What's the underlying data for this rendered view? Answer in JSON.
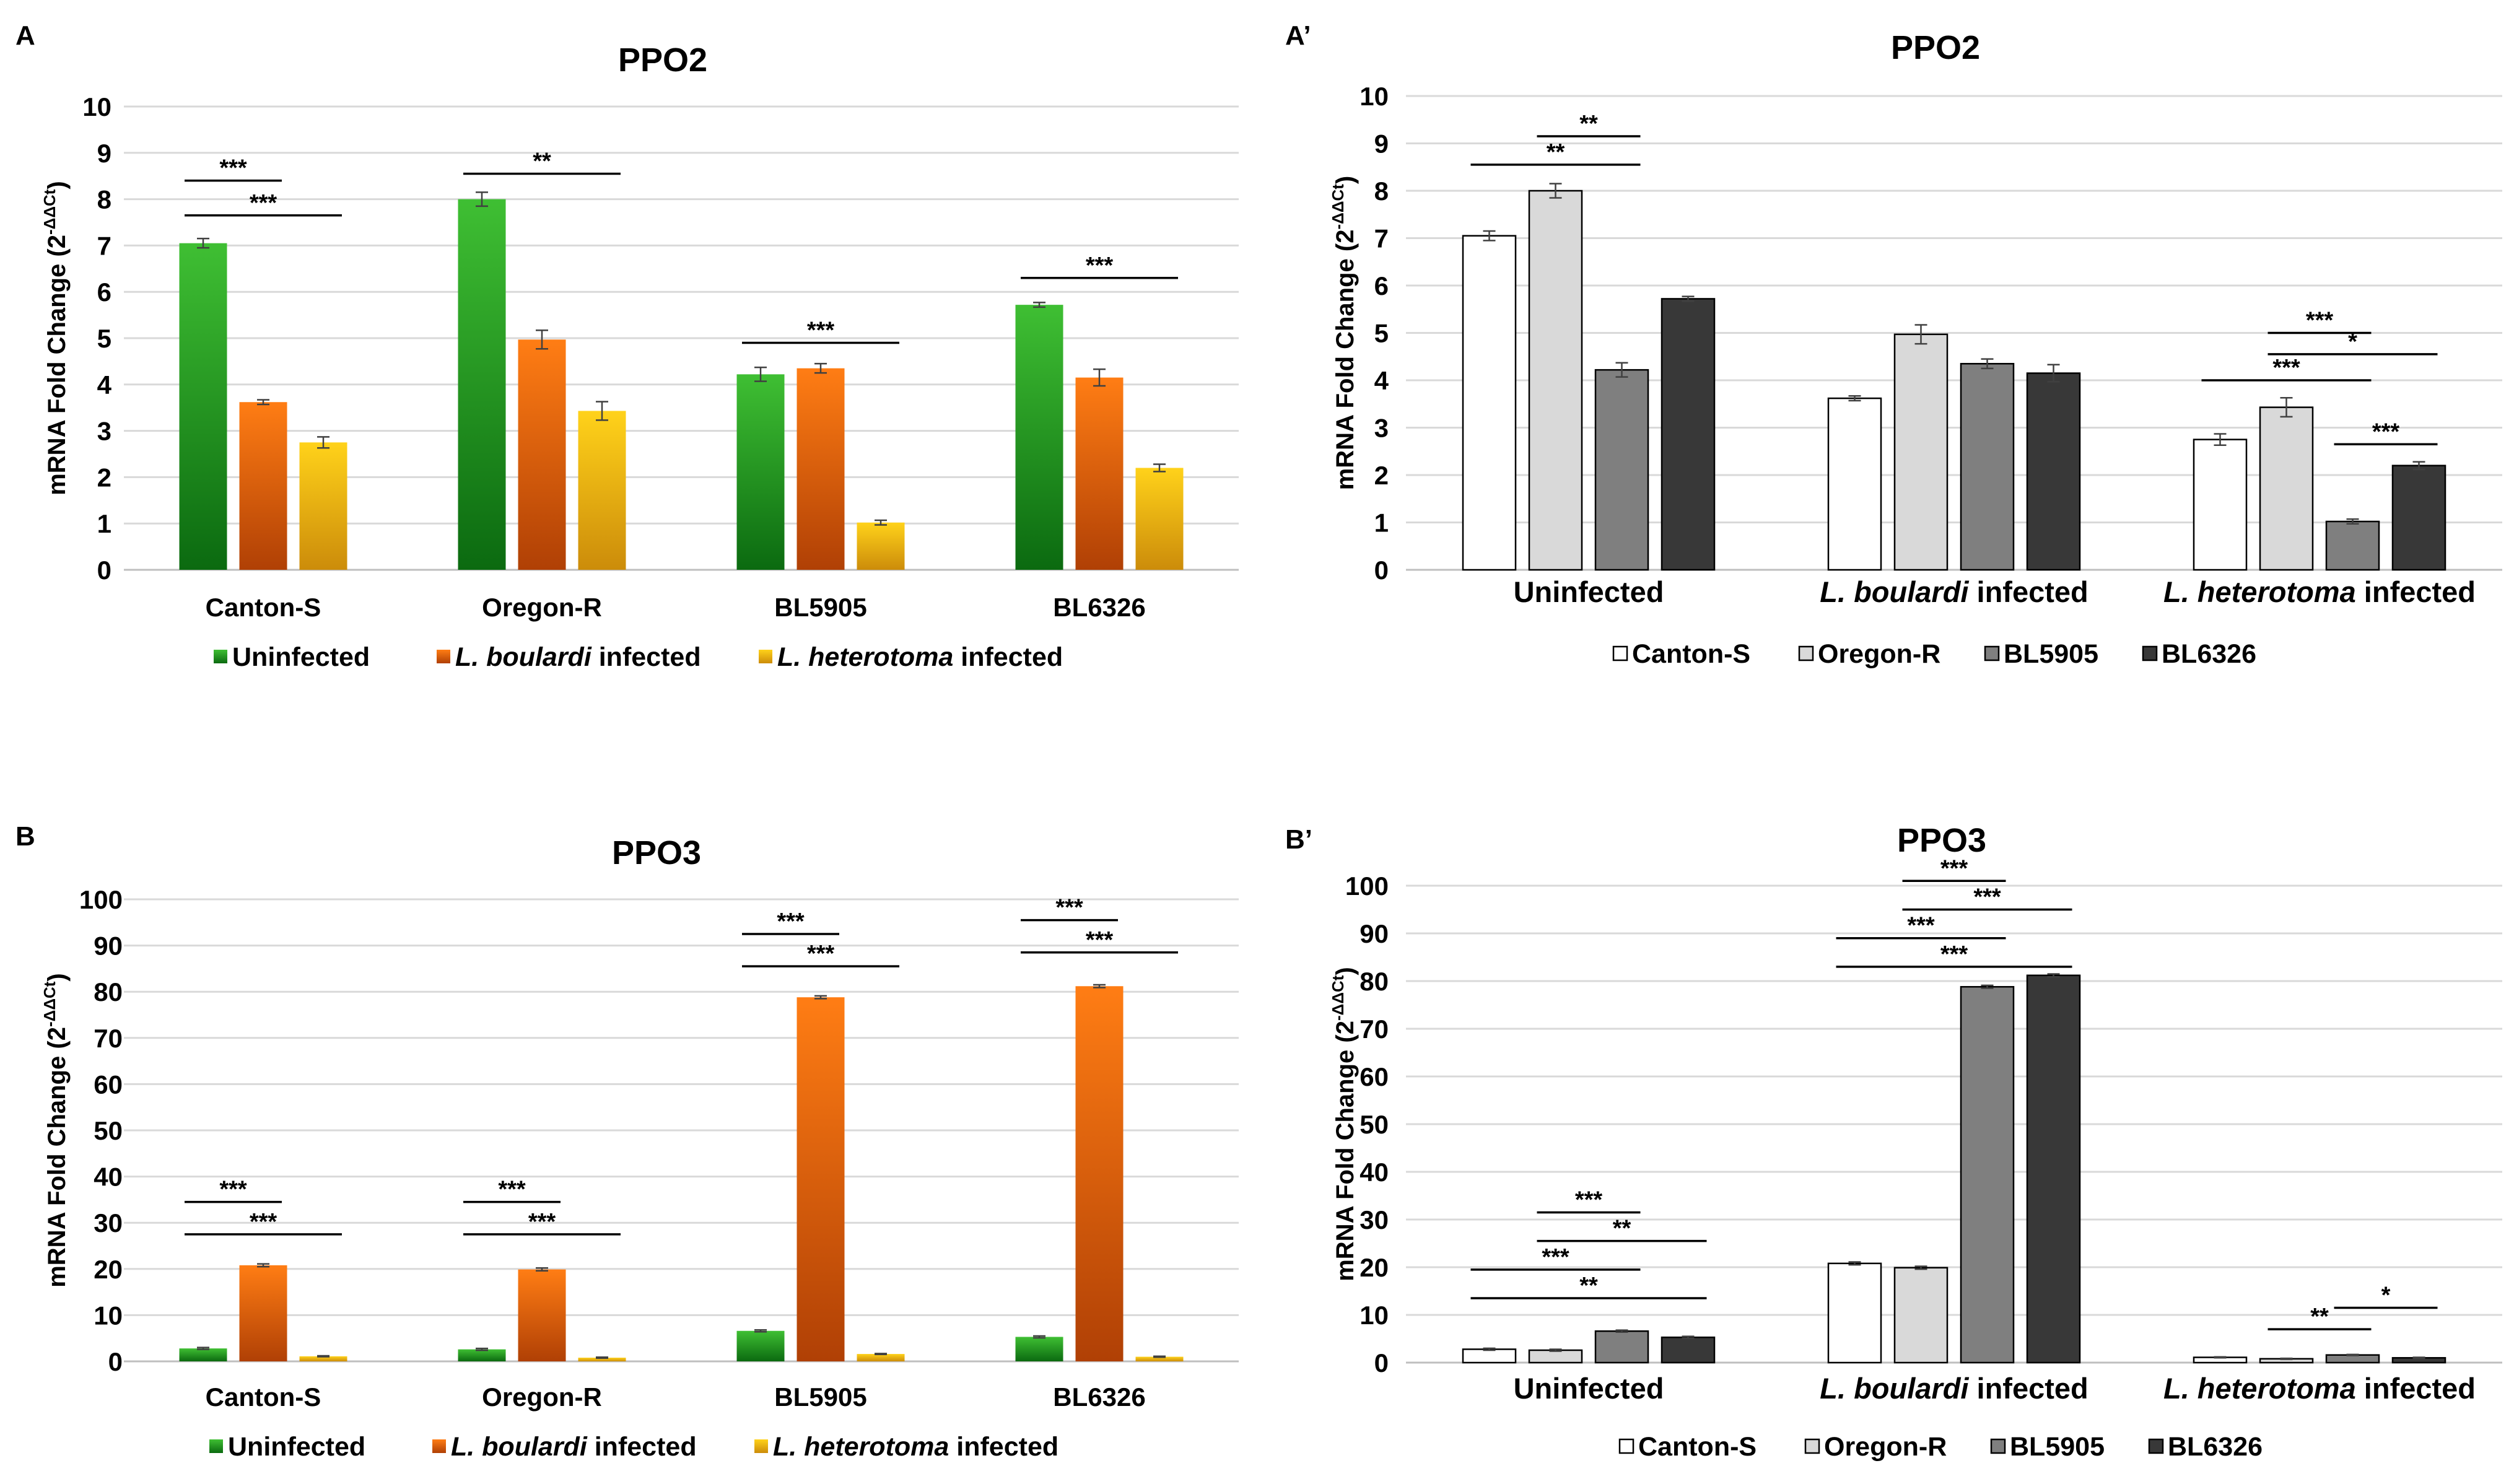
{
  "figure": {
    "colors": {
      "uninfected_top": "#3fbf33",
      "uninfected_bottom": "#0b6a10",
      "boulardi_top": "#ff7d14",
      "boulardi_bottom": "#b04005",
      "heterotoma_top": "#ffd21a",
      "heterotoma_bottom": "#cc8c0a",
      "canton": "#ffffff",
      "oregon": "#d9d9d9",
      "bl5905": "#7f7f7f",
      "bl6326": "#383838"
    }
  },
  "chart_data": [
    {
      "id": "A",
      "panel_label": "A",
      "type": "bar",
      "title": "PPO2",
      "ylabel": "mRNA Fold Change (2",
      "ylabel_sup": "-ΔΔCt",
      "ylabel_close": ")",
      "ylim": [
        0,
        10
      ],
      "yticks": [
        "0",
        "1",
        "2",
        "3",
        "4",
        "5",
        "6",
        "7",
        "8",
        "9",
        "10"
      ],
      "grid": true,
      "categories": [
        "Canton-S",
        "Oregon-R",
        "BL5905",
        "BL6326"
      ],
      "series": [
        {
          "name": "Uninfected",
          "name_italic": "",
          "name_rest": "Uninfected",
          "color_key": "uninfected",
          "values": [
            7.05,
            8.0,
            4.22,
            5.72
          ],
          "errors": [
            0.1,
            0.15,
            0.15,
            0.05
          ]
        },
        {
          "name": "L. boulardi infected",
          "name_italic": "L. boulardi",
          "name_rest": " infected",
          "color_key": "boulardi",
          "values": [
            3.62,
            4.97,
            4.35,
            4.15
          ],
          "errors": [
            0.05,
            0.2,
            0.1,
            0.18
          ]
        },
        {
          "name": "L. heterotoma infected",
          "name_italic": "L. heterotoma",
          "name_rest": " infected",
          "color_key": "heterotoma",
          "values": [
            2.75,
            3.43,
            1.02,
            2.2
          ],
          "errors": [
            0.12,
            0.2,
            0.05,
            0.08
          ]
        }
      ],
      "significance": [
        {
          "label": "***",
          "from_cat": 0,
          "from_series": 0,
          "to_cat": 0,
          "to_series": 1,
          "y": 8.4
        },
        {
          "label": "***",
          "from_cat": 0,
          "from_series": 0,
          "to_cat": 0,
          "to_series": 2,
          "y": 7.65
        },
        {
          "label": "**",
          "from_cat": 1,
          "from_series": 0,
          "to_cat": 1,
          "to_series": 2,
          "y": 8.55
        },
        {
          "label": "***",
          "from_cat": 2,
          "from_series": 0,
          "to_cat": 2,
          "to_series": 2,
          "y": 4.9
        },
        {
          "label": "***",
          "from_cat": 3,
          "from_series": 0,
          "to_cat": 3,
          "to_series": 2,
          "y": 6.3
        }
      ],
      "legend_position": "bottom"
    },
    {
      "id": "A2",
      "panel_label": "A’",
      "type": "bar",
      "title": "PPO2",
      "ylabel": "mRNA Fold Change (2",
      "ylabel_sup": "-ΔΔCt",
      "ylabel_close": ")",
      "ylim": [
        0,
        10
      ],
      "yticks": [
        "0",
        "1",
        "2",
        "3",
        "4",
        "5",
        "6",
        "7",
        "8",
        "9",
        "10"
      ],
      "grid": true,
      "categories": [
        {
          "italic": "",
          "rest": "Uninfected"
        },
        {
          "italic": "L. boulardi",
          "rest": " infected"
        },
        {
          "italic": "L. heterotoma",
          "rest": " infected"
        }
      ],
      "series": [
        {
          "name": "Canton-S",
          "name_italic": "",
          "name_rest": "Canton-S",
          "color_key": "canton",
          "values": [
            7.05,
            3.62,
            2.75
          ],
          "errors": [
            0.1,
            0.05,
            0.12
          ]
        },
        {
          "name": "Oregon-R",
          "name_italic": "",
          "name_rest": "Oregon-R",
          "color_key": "oregon",
          "values": [
            8.0,
            4.97,
            3.43
          ],
          "errors": [
            0.15,
            0.2,
            0.2
          ]
        },
        {
          "name": "BL5905",
          "name_italic": "",
          "name_rest": "BL5905",
          "color_key": "bl5905",
          "values": [
            4.22,
            4.35,
            1.02
          ],
          "errors": [
            0.15,
            0.1,
            0.05
          ]
        },
        {
          "name": "BL6326",
          "name_italic": "",
          "name_rest": "BL6326",
          "color_key": "bl6326",
          "values": [
            5.72,
            4.15,
            2.2
          ],
          "errors": [
            0.05,
            0.18,
            0.08
          ]
        }
      ],
      "significance": [
        {
          "label": "**",
          "from_cat": 0,
          "from_series": 1,
          "to_cat": 0,
          "to_series": 2,
          "y": 9.15
        },
        {
          "label": "**",
          "from_cat": 0,
          "from_series": 0,
          "to_cat": 0,
          "to_series": 2,
          "y": 8.55
        },
        {
          "label": "***",
          "from_cat": 2,
          "from_series": 1,
          "to_cat": 2,
          "to_series": 2,
          "y": 5.0
        },
        {
          "label": "*",
          "from_cat": 2,
          "from_series": 1,
          "to_cat": 2,
          "to_series": 3,
          "y": 4.55
        },
        {
          "label": "***",
          "from_cat": 2,
          "from_series": 0,
          "to_cat": 2,
          "to_series": 2,
          "y": 4.0
        },
        {
          "label": "***",
          "from_cat": 2,
          "from_series": 2,
          "to_cat": 2,
          "to_series": 3,
          "y": 2.65
        }
      ],
      "legend_position": "bottom"
    },
    {
      "id": "B",
      "panel_label": "B",
      "type": "bar",
      "title": "PPO3",
      "ylabel": "mRNA Fold Change (2",
      "ylabel_sup": "-ΔΔCt",
      "ylabel_close": ")",
      "ylim": [
        0,
        100
      ],
      "yticks": [
        "0",
        "10",
        "20",
        "30",
        "40",
        "50",
        "60",
        "70",
        "80",
        "90",
        "100"
      ],
      "grid": true,
      "categories": [
        "Canton-S",
        "Oregon-R",
        "BL5905",
        "BL6326"
      ],
      "series": [
        {
          "name": "Uninfected",
          "name_italic": "",
          "name_rest": "Uninfected",
          "color_key": "uninfected",
          "values": [
            2.8,
            2.6,
            6.6,
            5.3
          ],
          "errors": [
            0.2,
            0.2,
            0.2,
            0.2
          ]
        },
        {
          "name": "L. boulardi infected",
          "name_italic": "L. boulardi",
          "name_rest": " infected",
          "color_key": "boulardi",
          "values": [
            20.8,
            19.9,
            78.8,
            81.2
          ],
          "errors": [
            0.3,
            0.3,
            0.3,
            0.3
          ]
        },
        {
          "name": "L. heterotoma infected",
          "name_italic": "L. heterotoma",
          "name_rest": " infected",
          "color_key": "heterotoma",
          "values": [
            1.1,
            0.8,
            1.6,
            1.0
          ],
          "errors": [
            0.1,
            0.1,
            0.1,
            0.1
          ]
        }
      ],
      "significance": [
        {
          "label": "***",
          "from_cat": 0,
          "from_series": 0,
          "to_cat": 0,
          "to_series": 1,
          "y": 34.5
        },
        {
          "label": "***",
          "from_cat": 0,
          "from_series": 0,
          "to_cat": 0,
          "to_series": 2,
          "y": 27.5
        },
        {
          "label": "***",
          "from_cat": 1,
          "from_series": 0,
          "to_cat": 1,
          "to_series": 1,
          "y": 34.5
        },
        {
          "label": "***",
          "from_cat": 1,
          "from_series": 0,
          "to_cat": 1,
          "to_series": 2,
          "y": 27.5
        },
        {
          "label": "***",
          "from_cat": 2,
          "from_series": 0,
          "to_cat": 2,
          "to_series": 1,
          "y": 92.5
        },
        {
          "label": "***",
          "from_cat": 2,
          "from_series": 0,
          "to_cat": 2,
          "to_series": 2,
          "y": 85.5
        },
        {
          "label": "***",
          "from_cat": 3,
          "from_series": 0,
          "to_cat": 3,
          "to_series": 1,
          "y": 95.5
        },
        {
          "label": "***",
          "from_cat": 3,
          "from_series": 0,
          "to_cat": 3,
          "to_series": 2,
          "y": 88.5
        }
      ],
      "legend_position": "bottom"
    },
    {
      "id": "B2",
      "panel_label": "B’",
      "type": "bar",
      "title": "PPO3",
      "ylabel": "mRNA Fold Change (2",
      "ylabel_sup": "-ΔΔCt",
      "ylabel_close": ")",
      "ylim": [
        0,
        100
      ],
      "yticks": [
        "0",
        "10",
        "20",
        "30",
        "40",
        "50",
        "60",
        "70",
        "80",
        "90",
        "100"
      ],
      "grid": true,
      "categories": [
        {
          "italic": "",
          "rest": "Uninfected"
        },
        {
          "italic": "L. boulardi",
          "rest": " infected"
        },
        {
          "italic": "L. heterotoma",
          "rest": " infected"
        }
      ],
      "series": [
        {
          "name": "Canton-S",
          "name_italic": "",
          "name_rest": "Canton-S",
          "color_key": "canton",
          "values": [
            2.8,
            20.8,
            1.1
          ],
          "errors": [
            0.2,
            0.3,
            0.1
          ]
        },
        {
          "name": "Oregon-R",
          "name_italic": "",
          "name_rest": "Oregon-R",
          "color_key": "oregon",
          "values": [
            2.6,
            19.9,
            0.8
          ],
          "errors": [
            0.2,
            0.3,
            0.1
          ]
        },
        {
          "name": "BL5905",
          "name_italic": "",
          "name_rest": "BL5905",
          "color_key": "bl5905",
          "values": [
            6.6,
            78.8,
            1.6
          ],
          "errors": [
            0.2,
            0.3,
            0.1
          ]
        },
        {
          "name": "BL6326",
          "name_italic": "",
          "name_rest": "BL6326",
          "color_key": "bl6326",
          "values": [
            5.3,
            81.2,
            1.0
          ],
          "errors": [
            0.2,
            0.3,
            0.1
          ]
        }
      ],
      "significance": [
        {
          "label": "***",
          "from_cat": 0,
          "from_series": 1,
          "to_cat": 0,
          "to_series": 2,
          "y": 31.5
        },
        {
          "label": "**",
          "from_cat": 0,
          "from_series": 1,
          "to_cat": 0,
          "to_series": 3,
          "y": 25.5
        },
        {
          "label": "***",
          "from_cat": 0,
          "from_series": 0,
          "to_cat": 0,
          "to_series": 2,
          "y": 19.5
        },
        {
          "label": "**",
          "from_cat": 0,
          "from_series": 0,
          "to_cat": 0,
          "to_series": 3,
          "y": 13.5
        },
        {
          "label": "***",
          "from_cat": 1,
          "from_series": 1,
          "to_cat": 1,
          "to_series": 2,
          "y": 101.0
        },
        {
          "label": "***",
          "from_cat": 1,
          "from_series": 1,
          "to_cat": 1,
          "to_series": 3,
          "y": 95.0
        },
        {
          "label": "***",
          "from_cat": 1,
          "from_series": 0,
          "to_cat": 1,
          "to_series": 2,
          "y": 89.0
        },
        {
          "label": "***",
          "from_cat": 1,
          "from_series": 0,
          "to_cat": 1,
          "to_series": 3,
          "y": 83.0
        },
        {
          "label": "**",
          "from_cat": 2,
          "from_series": 1,
          "to_cat": 2,
          "to_series": 2,
          "y": 7.0
        },
        {
          "label": "*",
          "from_cat": 2,
          "from_series": 2,
          "to_cat": 2,
          "to_series": 3,
          "y": 11.5
        }
      ],
      "legend_position": "bottom"
    }
  ]
}
